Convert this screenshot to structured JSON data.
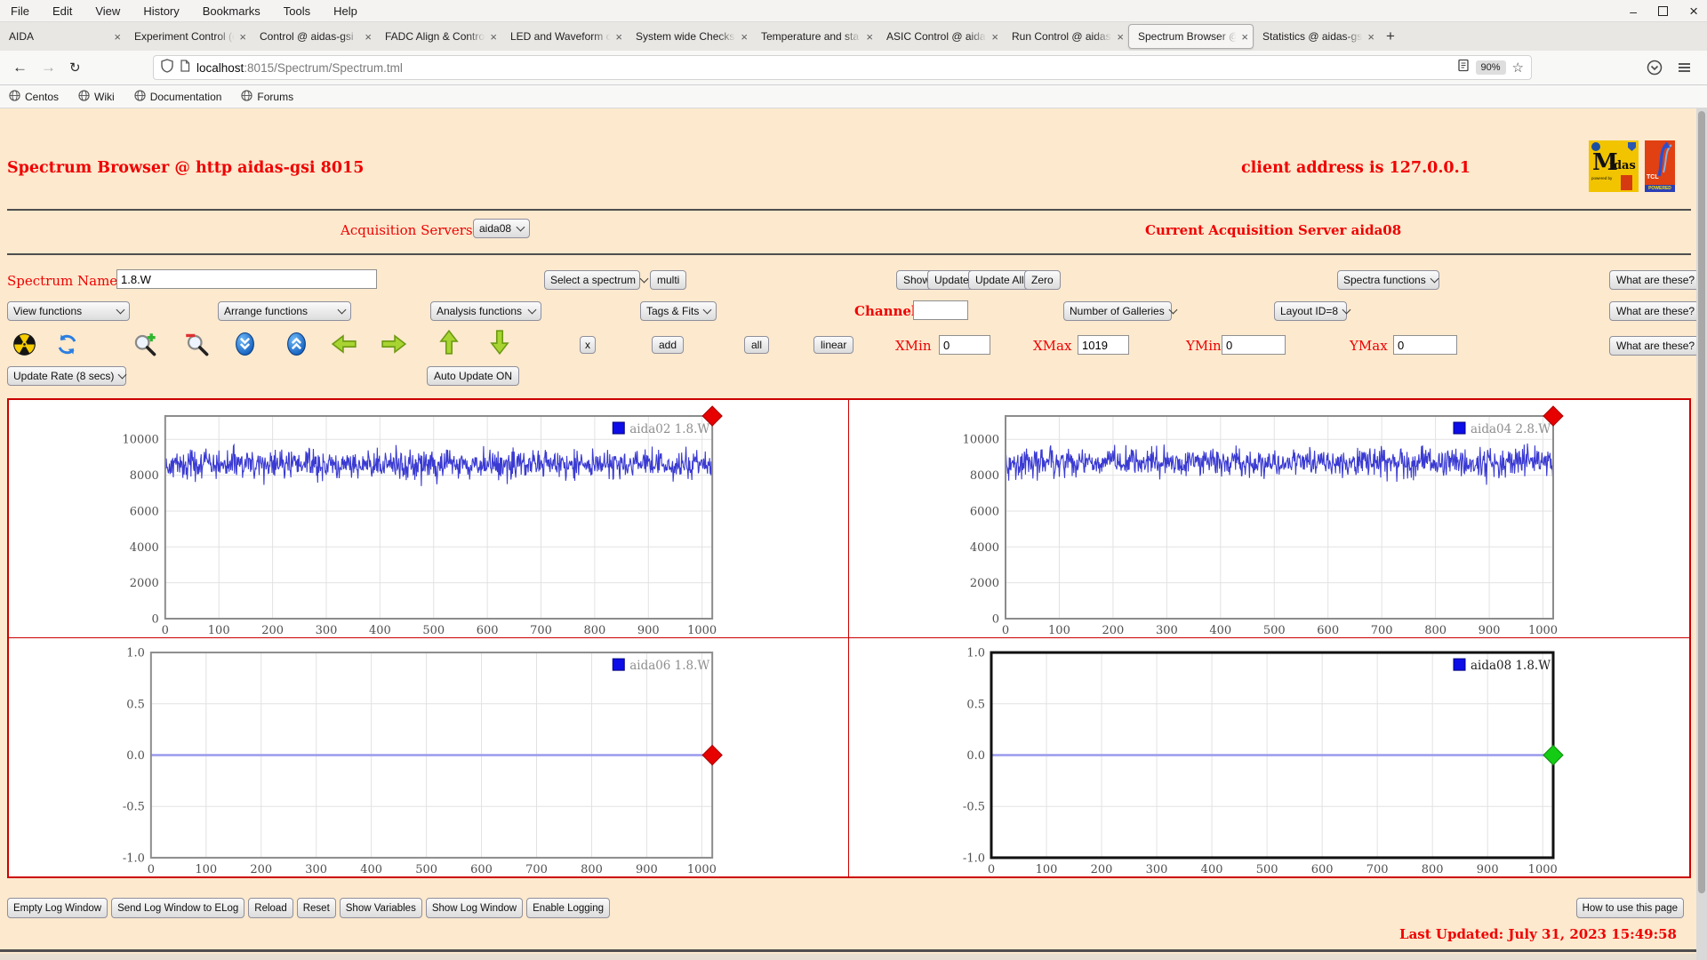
{
  "browser": {
    "menu": [
      "File",
      "Edit",
      "View",
      "History",
      "Bookmarks",
      "Tools",
      "Help"
    ],
    "tabs": [
      {
        "label": "AIDA",
        "active": false
      },
      {
        "label": "Experiment Control (c",
        "active": false
      },
      {
        "label": "Control @ aidas-gsi",
        "active": false
      },
      {
        "label": "FADC Align & Contro",
        "active": false
      },
      {
        "label": "LED and Waveform c",
        "active": false
      },
      {
        "label": "System wide Checks",
        "active": false
      },
      {
        "label": "Temperature and sta",
        "active": false
      },
      {
        "label": "ASIC Control @ aida",
        "active": false
      },
      {
        "label": "Run Control @ aidas-",
        "active": false
      },
      {
        "label": "Spectrum Browser @",
        "active": true
      },
      {
        "label": "Statistics @ aidas-gsi",
        "active": false
      }
    ],
    "url": {
      "host": "localhost",
      "path": ":8015/Spectrum/Spectrum.tml"
    },
    "zoom_badge": "90%",
    "bookmarks": [
      "Centos",
      "Wiki",
      "Documentation",
      "Forums"
    ]
  },
  "icons": {
    "back": "←",
    "forward": "→",
    "reload": "↻",
    "star": "☆",
    "minimize": "–",
    "close": "×",
    "new_tab": "+",
    "tab_close": "×"
  },
  "page": {
    "title": "Spectrum Browser @ http aidas-gsi 8015",
    "client_address": "client address is 127.0.0.1",
    "logos": {
      "m": "M",
      "idas": "idas",
      "powered_by": "powered by",
      "tcl": "TCL",
      "powered": "POWERED"
    },
    "acquisition": {
      "label": "Acquisition Servers",
      "selected": "aida08",
      "current": "Current Acquisition Server aida08"
    },
    "spectrum_row": {
      "label": "Spectrum Name:",
      "value": "1.8.W",
      "select_spectrum": "Select a spectrum",
      "multi": "multi",
      "show": "Show",
      "update": "Update",
      "update_all": "Update All",
      "zero": "Zero",
      "spectra_functions": "Spectra functions",
      "what": "What are these?"
    },
    "functions_row": {
      "view": "View functions",
      "arrange": "Arrange functions",
      "analysis": "Analysis functions",
      "tags": "Tags & Fits",
      "channel_label": "Channel:",
      "channel_value": "",
      "galleries": "Number of Galleries",
      "layout": "Layout ID=8",
      "what": "What are these?"
    },
    "toolbar_row": {
      "x": "x",
      "add": "add",
      "all": "all",
      "linear": "linear",
      "xmin_label": "XMin",
      "xmin": "0",
      "xmax_label": "XMax",
      "xmax": "1019",
      "ymin_label": "YMin",
      "ymin": "0",
      "ymax_label": "YMax",
      "ymax": "0",
      "what": "What are these?"
    },
    "update_row": {
      "rate": "Update Rate (8 secs)",
      "auto": "Auto Update ON"
    },
    "footer": {
      "buttons": [
        "Empty Log Window",
        "Send Log Window to ELog",
        "Reload",
        "Reset",
        "Show Variables",
        "Show Log Window",
        "Enable Logging"
      ],
      "help": "How to use this page",
      "last_updated": "Last Updated: July 31, 2023 15:49:58"
    }
  },
  "chart_data": [
    {
      "type": "line",
      "panel": "top-left",
      "legend": "aida02 1.8.W",
      "x_range": [
        0,
        1019
      ],
      "y_range": [
        0,
        11300
      ],
      "x_ticks": [
        0,
        100,
        200,
        300,
        400,
        500,
        600,
        700,
        800,
        900,
        1000
      ],
      "y_ticks": [
        0,
        2000,
        4000,
        6000,
        8000,
        10000
      ],
      "y_tick_format": "int",
      "series": {
        "style": "noisy-random",
        "n_points": 1020,
        "baseline": 8600,
        "noise_amplitude": 1400,
        "seed": 42
      },
      "line_color": "#3A3AD2",
      "grid": true,
      "legend_color": "#8E8E8E",
      "marker": {
        "shape": "diamond",
        "color": "#E60000",
        "edge": "#A80000",
        "position": "top-right"
      },
      "border": {
        "color": "#8C8C8C",
        "width": 2
      },
      "selected": false
    },
    {
      "type": "line",
      "panel": "top-right",
      "legend": "aida04 2.8.W",
      "x_range": [
        0,
        1019
      ],
      "y_range": [
        0,
        11300
      ],
      "x_ticks": [
        0,
        100,
        200,
        300,
        400,
        500,
        600,
        700,
        800,
        900,
        1000
      ],
      "y_ticks": [
        0,
        2000,
        4000,
        6000,
        8000,
        10000
      ],
      "y_tick_format": "int",
      "series": {
        "style": "noisy-random",
        "n_points": 1020,
        "baseline": 8700,
        "noise_amplitude": 1400,
        "seed": 77
      },
      "line_color": "#3A3AD2",
      "grid": true,
      "legend_color": "#8E8E8E",
      "marker": {
        "shape": "diamond",
        "color": "#E60000",
        "edge": "#A80000",
        "position": "top-right"
      },
      "border": {
        "color": "#8C8C8C",
        "width": 2
      },
      "selected": false
    },
    {
      "type": "line",
      "panel": "bottom-left",
      "legend": "aida06 1.8.W",
      "x_range": [
        0,
        1019
      ],
      "y_range": [
        -1,
        1
      ],
      "x_ticks": [
        0,
        100,
        200,
        300,
        400,
        500,
        600,
        700,
        800,
        900,
        1000
      ],
      "y_ticks": [
        1.0,
        0.5,
        0.0,
        -0.5,
        -1.0
      ],
      "y_tick_format": "one-decimal",
      "series": {
        "style": "flat",
        "value": 0.0
      },
      "line_color": "#9A9AEE",
      "grid": true,
      "legend_color": "#8E8E8E",
      "marker": {
        "shape": "diamond",
        "color": "#E60000",
        "edge": "#A80000",
        "position": "right-mid"
      },
      "border": {
        "color": "#8C8C8C",
        "width": 2
      },
      "selected": false
    },
    {
      "type": "line",
      "panel": "bottom-right",
      "legend": "aida08 1.8.W",
      "x_range": [
        0,
        1019
      ],
      "y_range": [
        -1,
        1
      ],
      "x_ticks": [
        0,
        100,
        200,
        300,
        400,
        500,
        600,
        700,
        800,
        900,
        1000
      ],
      "y_ticks": [
        1.0,
        0.5,
        0.0,
        -0.5,
        -1.0
      ],
      "y_tick_format": "one-decimal",
      "series": {
        "style": "flat",
        "value": 0.0
      },
      "line_color": "#9A9AEE",
      "grid": true,
      "legend_color": "#1E1E1E",
      "marker": {
        "shape": "diamond",
        "color": "#14CC14",
        "edge": "#0A8A0A",
        "position": "right-mid"
      },
      "border": {
        "color": "#111111",
        "width": 3
      },
      "selected": true
    }
  ]
}
